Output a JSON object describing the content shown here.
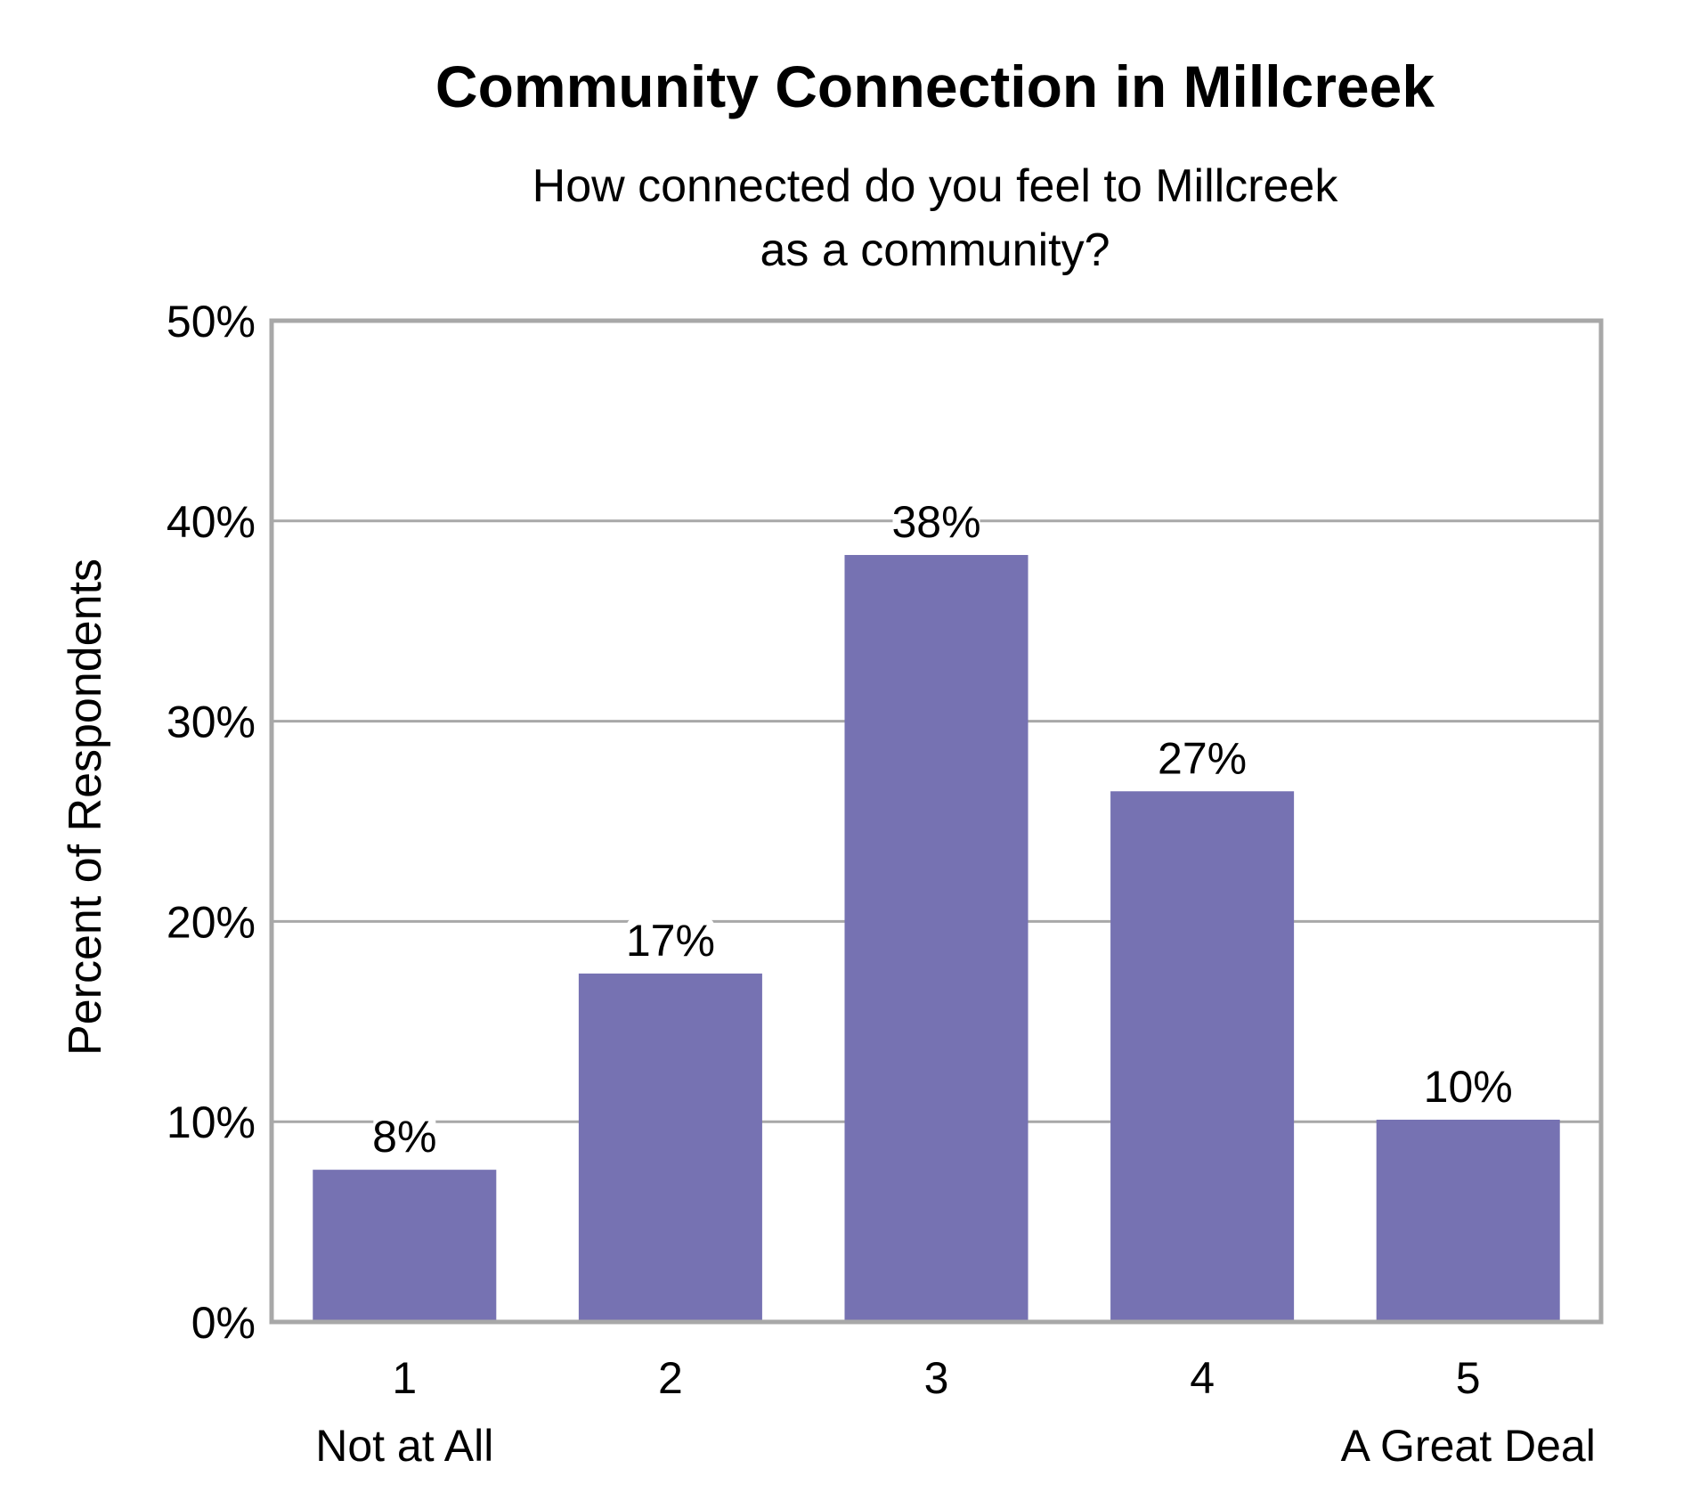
{
  "chart_data": {
    "type": "bar",
    "title": "Community Connection in Millcreek",
    "subtitle_lines": [
      "How connected do you feel to Millcreek",
      "as a community?"
    ],
    "ylabel": "Percent of Respondents",
    "xlabel": "",
    "categories": [
      "1",
      "2",
      "3",
      "4",
      "5"
    ],
    "category_sublabels": [
      "Not at All",
      "",
      "",
      "",
      "A Great Deal"
    ],
    "values": [
      7.6,
      17.4,
      38.3,
      26.5,
      10.1
    ],
    "value_labels": [
      "8%",
      "17%",
      "38%",
      "27%",
      "10%"
    ],
    "ylim": [
      0,
      50
    ],
    "yticks": [
      0,
      10,
      20,
      30,
      40,
      50
    ],
    "ytick_labels": [
      "0%",
      "10%",
      "20%",
      "30%",
      "40%",
      "50%"
    ],
    "grid": true,
    "legend": "none",
    "colors": {
      "bar": "#7672b2",
      "grid": "#a8a8a8",
      "frame": "#a8a8a8",
      "text": "#000000"
    }
  }
}
